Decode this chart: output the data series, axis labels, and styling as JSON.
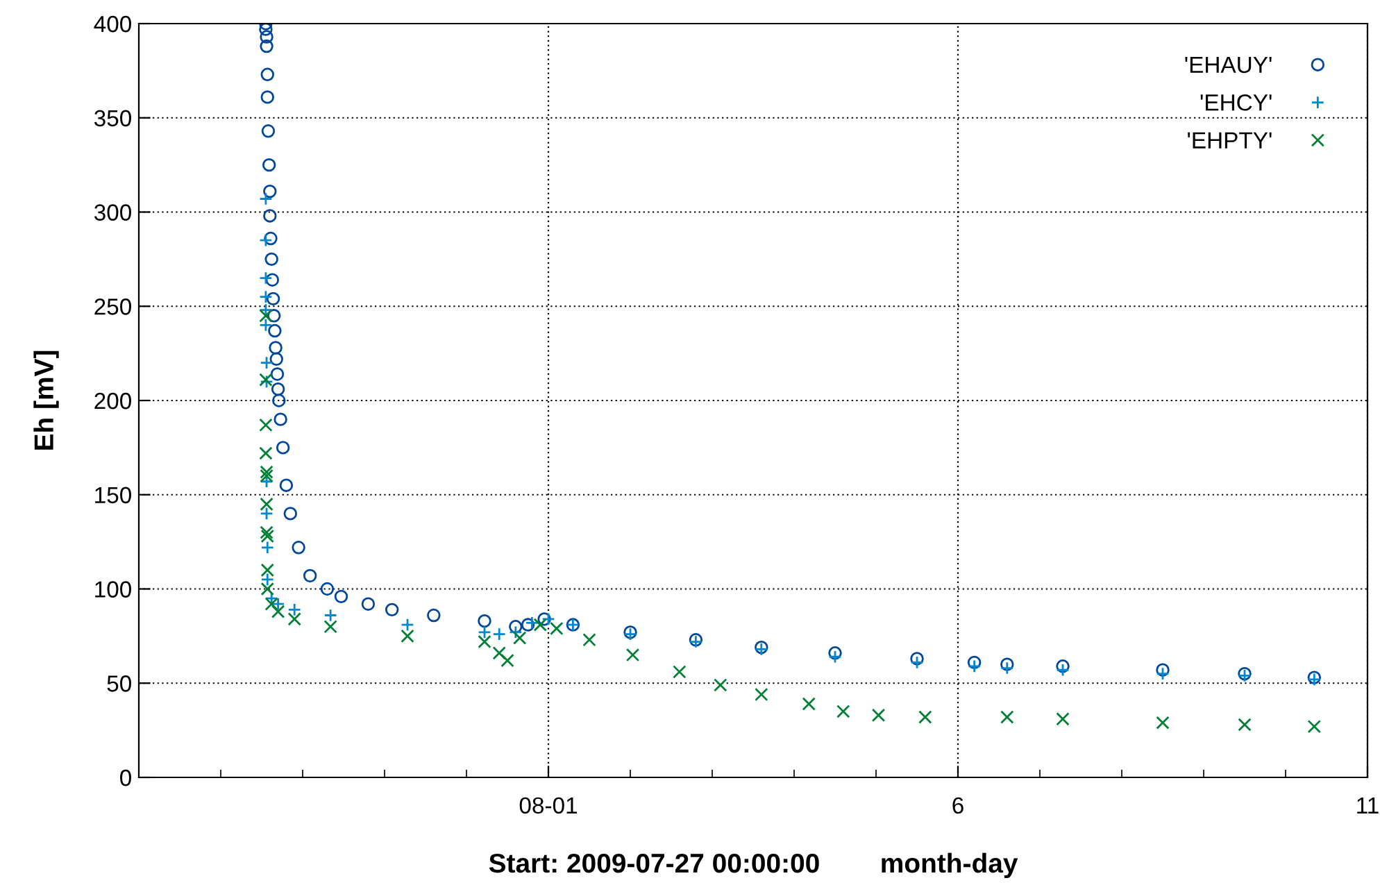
{
  "chart_data": {
    "type": "scatter",
    "xlabel": "Start: 2009-07-27 00:00:00        month-day",
    "ylabel": "Eh [mV]",
    "xlim": [
      "2009-07-27",
      "2009-08-11"
    ],
    "ylim": [
      0,
      400
    ],
    "xticks": [
      {
        "value": "2009-07-28",
        "label": null
      },
      {
        "value": "2009-07-29",
        "label": null
      },
      {
        "value": "2009-07-30",
        "label": null
      },
      {
        "value": "2009-07-31",
        "label": null
      },
      {
        "value": "2009-08-01",
        "label": "08-01"
      },
      {
        "value": "2009-08-02",
        "label": null
      },
      {
        "value": "2009-08-03",
        "label": null
      },
      {
        "value": "2009-08-04",
        "label": null
      },
      {
        "value": "2009-08-05",
        "label": null
      },
      {
        "value": "2009-08-06",
        "label": "6"
      },
      {
        "value": "2009-08-07",
        "label": null
      },
      {
        "value": "2009-08-08",
        "label": null
      },
      {
        "value": "2009-08-09",
        "label": null
      },
      {
        "value": "2009-08-10",
        "label": null
      },
      {
        "value": "2009-08-11",
        "label": "11"
      }
    ],
    "yticks": [
      0,
      50,
      100,
      150,
      200,
      250,
      300,
      350,
      400
    ],
    "grid": true,
    "legend": "top right",
    "series": [
      {
        "name": "'EHAUY'",
        "color": "#00479c",
        "marker": "circle",
        "x": [
          "2009-07-28T13:12",
          "2009-07-28T13:12",
          "2009-07-28T13:26",
          "2009-07-28T13:26",
          "2009-07-28T13:41",
          "2009-07-28T13:41",
          "2009-07-28T13:55",
          "2009-07-28T14:10",
          "2009-07-28T14:24",
          "2009-07-28T14:24",
          "2009-07-28T14:38",
          "2009-07-28T14:53",
          "2009-07-28T15:07",
          "2009-07-28T15:22",
          "2009-07-28T15:36",
          "2009-07-28T15:50",
          "2009-07-28T16:05",
          "2009-07-28T16:19",
          "2009-07-28T16:34",
          "2009-07-28T16:48",
          "2009-07-28T17:02",
          "2009-07-28T17:31",
          "2009-07-28T18:14",
          "2009-07-28T19:12",
          "2009-07-28T20:24",
          "2009-07-28T22:48",
          "2009-07-29T02:10",
          "2009-07-29T07:12",
          "2009-07-29T11:17",
          "2009-07-29T19:12",
          "2009-07-30T02:10",
          "2009-07-30T14:24",
          "2009-07-31T05:17",
          "2009-07-31T14:24",
          "2009-07-31T18:00",
          "2009-07-31T22:48",
          "2009-08-01T07:12",
          "2009-08-02T00:00",
          "2009-08-02T19:12",
          "2009-08-03T14:24",
          "2009-08-04T12:00",
          "2009-08-05T12:00",
          "2009-08-06T04:48",
          "2009-08-06T14:24",
          "2009-08-07T06:43",
          "2009-08-08T12:00",
          "2009-08-09T12:00",
          "2009-08-10T08:24"
        ],
        "values": [
          400,
          397,
          393,
          388,
          373,
          361,
          343,
          325,
          311,
          298,
          286,
          275,
          264,
          254,
          245,
          237,
          228,
          222,
          214,
          206,
          200,
          190,
          175,
          155,
          140,
          122,
          107,
          100,
          96,
          92,
          89,
          86,
          83,
          80,
          81,
          84,
          81,
          77,
          73,
          69,
          66,
          63,
          61,
          60,
          59,
          57,
          55,
          53
        ]
      },
      {
        "name": "'EHCY'",
        "color": "#0087cf",
        "marker": "plus",
        "x": [
          "2009-07-28T13:12",
          "2009-07-28T13:12",
          "2009-07-28T13:12",
          "2009-07-28T13:12",
          "2009-07-28T13:12",
          "2009-07-28T13:12",
          "2009-07-28T13:26",
          "2009-07-28T13:26",
          "2009-07-28T13:26",
          "2009-07-28T13:26",
          "2009-07-28T13:41",
          "2009-07-28T13:41",
          "2009-07-28T14:53",
          "2009-07-28T16:48",
          "2009-07-28T21:36",
          "2009-07-29T08:10",
          "2009-07-30T06:43",
          "2009-07-31T05:17",
          "2009-07-31T09:36",
          "2009-07-31T14:24",
          "2009-07-31T19:12",
          "2009-08-01T00:00",
          "2009-08-01T07:12",
          "2009-08-02T00:00",
          "2009-08-02T19:12",
          "2009-08-03T14:24",
          "2009-08-04T12:00",
          "2009-08-05T12:00",
          "2009-08-06T04:48",
          "2009-08-06T14:24",
          "2009-08-07T06:43",
          "2009-08-08T12:00",
          "2009-08-09T12:00",
          "2009-08-10T08:24"
        ],
        "values": [
          307,
          285,
          265,
          255,
          248,
          240,
          220,
          210,
          157,
          140,
          122,
          105,
          95,
          92,
          89,
          86,
          81,
          77,
          76,
          77,
          82,
          84,
          81,
          76,
          72,
          68,
          64,
          61,
          59,
          58,
          57,
          55,
          54,
          52
        ]
      },
      {
        "name": "'EHPTY'",
        "color": "#008035",
        "marker": "cross",
        "x": [
          "2009-07-28T13:12",
          "2009-07-28T13:12",
          "2009-07-28T13:12",
          "2009-07-28T13:12",
          "2009-07-28T13:26",
          "2009-07-28T13:26",
          "2009-07-28T13:26",
          "2009-07-28T13:26",
          "2009-07-28T13:41",
          "2009-07-28T13:41",
          "2009-07-28T13:41",
          "2009-07-28T14:53",
          "2009-07-28T16:48",
          "2009-07-28T21:36",
          "2009-07-29T08:10",
          "2009-07-30T06:43",
          "2009-07-31T05:17",
          "2009-07-31T09:36",
          "2009-07-31T12:00",
          "2009-07-31T15:36",
          "2009-07-31T21:36",
          "2009-08-01T02:24",
          "2009-08-01T12:00",
          "2009-08-02T00:43",
          "2009-08-02T14:24",
          "2009-08-03T02:24",
          "2009-08-03T14:24",
          "2009-08-04T04:19",
          "2009-08-04T14:24",
          "2009-08-05T00:43",
          "2009-08-05T14:24",
          "2009-08-06T14:24",
          "2009-08-07T06:43",
          "2009-08-08T12:00",
          "2009-08-09T12:00",
          "2009-08-10T08:24"
        ],
        "values": [
          245,
          211,
          187,
          172,
          162,
          160,
          145,
          130,
          128,
          110,
          100,
          92,
          88,
          84,
          80,
          75,
          72,
          66,
          62,
          74,
          81,
          79,
          73,
          65,
          56,
          49,
          44,
          39,
          35,
          33,
          32,
          32,
          31,
          29,
          28,
          27
        ]
      }
    ]
  }
}
